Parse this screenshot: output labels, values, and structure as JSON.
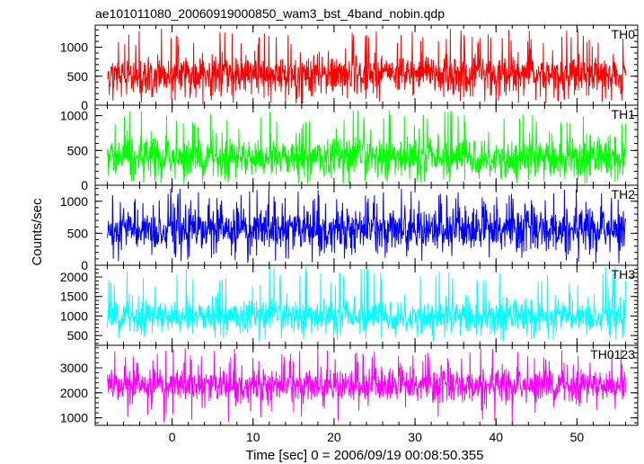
{
  "chart_data": {
    "type": "line",
    "title": "ae101011080_20060919000850_wam3_bst_4band_nobin.qdp",
    "xlabel": "Time [sec] 0 = 2006/09/19 00:08:50.355",
    "ylabel": "Counts/sec",
    "xlim": [
      -9.5,
      57.5
    ],
    "x_ticks": [
      0,
      10,
      20,
      30,
      40,
      50
    ],
    "x_tick_labels": [
      "0",
      "10",
      "20",
      "30",
      "40",
      "50"
    ],
    "x_data_range": [
      -8,
      56
    ],
    "panels": [
      {
        "name": "TH0",
        "color": "#ff0000",
        "ylim": [
          0,
          1380
        ],
        "y_ticks": [
          0,
          500,
          1000
        ],
        "y_tick_labels": [
          "0",
          "500",
          "1000"
        ],
        "mean": 520,
        "spread": 300,
        "peak_max": 1330,
        "floor_min": 20
      },
      {
        "name": "TH1",
        "color": "#00ff00",
        "ylim": [
          0,
          1150
        ],
        "y_ticks": [
          0,
          500,
          1000
        ],
        "y_tick_labels": [
          "0",
          "500",
          "1000"
        ],
        "mean": 400,
        "spread": 260,
        "peak_max": 1080,
        "floor_min": 20
      },
      {
        "name": "TH2",
        "color": "#0000ff",
        "ylim": [
          0,
          1250
        ],
        "y_ticks": [
          0,
          500,
          1000
        ],
        "y_tick_labels": [
          "0",
          "500",
          "1000"
        ],
        "mean": 560,
        "spread": 300,
        "peak_max": 1200,
        "floor_min": 30
      },
      {
        "name": "TH3",
        "color": "#00ffff",
        "ylim": [
          250,
          2300
        ],
        "y_ticks": [
          500,
          1000,
          1500,
          2000
        ],
        "y_tick_labels": [
          "500",
          "1000",
          "1500",
          "2000"
        ],
        "mean": 1000,
        "spread": 380,
        "peak_max": 2250,
        "floor_min": 350
      },
      {
        "name": "TH0123",
        "color": "#ff00ff",
        "ylim": [
          700,
          3900
        ],
        "y_ticks": [
          1000,
          2000,
          3000
        ],
        "y_tick_labels": [
          "1000",
          "2000",
          "3000"
        ],
        "mean": 2300,
        "spread": 600,
        "peak_max": 3800,
        "floor_min": 800
      }
    ]
  }
}
